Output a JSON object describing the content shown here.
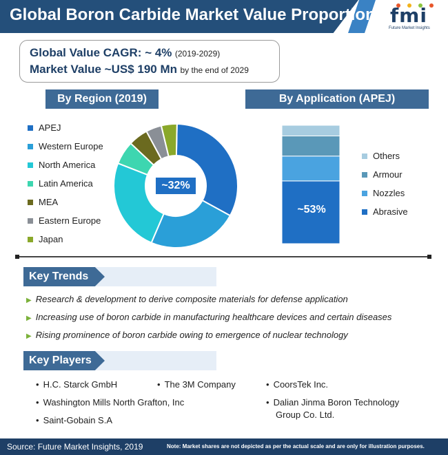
{
  "header": {
    "title": "Global Boron Carbide Market Value Proportion",
    "logo_text": "fmi",
    "logo_sub": "Future Market Insights"
  },
  "summary": {
    "cagr_label": "Global Value CAGR: ~ 4%",
    "cagr_period": "(2019-2029)",
    "market_label": "Market Value ~US$ 190 Mn",
    "market_suffix": "by the end of 2029"
  },
  "region": {
    "title": "By Region (2019)",
    "center_label": "~32%"
  },
  "application": {
    "title": "By Application (APEJ)",
    "bar_label": "~53%"
  },
  "chart_data": [
    {
      "type": "pie",
      "title": "By Region (2019)",
      "categories": [
        "APEJ",
        "Western Europe",
        "North America",
        "Latin America",
        "MEA",
        "Eastern Europe",
        "Japan"
      ],
      "values": [
        32,
        23,
        24,
        6,
        5,
        4,
        4
      ],
      "colors": [
        "#1f6fc4",
        "#2a9fd8",
        "#23c8d6",
        "#3dd6b0",
        "#6b6a1f",
        "#8a8f96",
        "#8aa82a"
      ],
      "annotation": "~32%",
      "legend": "left"
    },
    {
      "type": "bar",
      "title": "By Application (APEJ)",
      "categories": [
        "Abrasive",
        "Nozzles",
        "Armour",
        "Others"
      ],
      "values": [
        53,
        21,
        17,
        9
      ],
      "stacked": true,
      "colors": [
        "#1f6fc4",
        "#4aa3e0",
        "#5a98b8",
        "#a7cce0"
      ],
      "annotation": "~53%",
      "legend": "right"
    }
  ],
  "trends": {
    "title": "Key Trends",
    "items": [
      "Research & development to derive composite materials for defense application",
      "Increasing use of boron carbide in manufacturing healthcare devices and certain diseases",
      "Rising prominence of boron carbide owing to emergence of nuclear technology"
    ]
  },
  "players": {
    "title": "Key Players",
    "col1": [
      "H.C. Starck GmbH",
      "Washington Mills North Grafton, Inc",
      "Saint-Gobain S.A"
    ],
    "col2": [
      "The 3M Company"
    ],
    "col3": [
      "CoorsTek Inc.",
      "Dalian Jinma Boron Technology",
      "Group Co. Ltd."
    ]
  },
  "footer": {
    "source": "Source: Future Market Insights, 2019",
    "note": "Note: Market shares are not depicted as per the actual scale and are only for illustration purposes."
  }
}
